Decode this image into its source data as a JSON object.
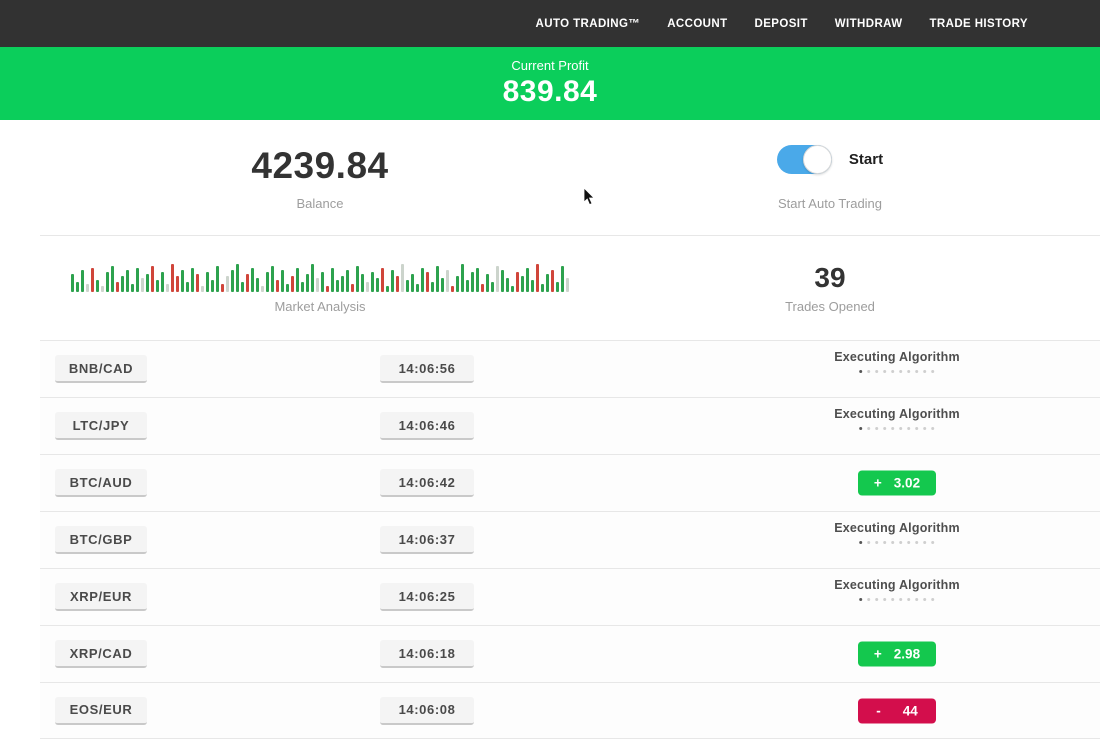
{
  "navbar": {
    "items": [
      {
        "label": "AUTO TRADING™"
      },
      {
        "label": "ACCOUNT"
      },
      {
        "label": "DEPOSIT"
      },
      {
        "label": "WITHDRAW"
      },
      {
        "label": "TRADE HISTORY"
      }
    ]
  },
  "profit_banner": {
    "label": "Current Profit",
    "value": "839.84"
  },
  "account": {
    "balance": "4239.84",
    "balance_label": "Balance",
    "toggle_label": "Start",
    "toggle_caption": "Start Auto Trading",
    "toggle_on": true
  },
  "market_analysis": {
    "label": "Market Analysis",
    "chart_type": "candlestick-strip",
    "bar_heights": [
      18,
      10,
      22,
      8,
      24,
      12,
      6,
      20,
      26,
      10,
      16,
      22,
      8,
      24,
      14,
      18,
      26,
      12,
      20,
      8,
      28,
      16,
      22,
      10,
      24,
      18,
      6,
      20,
      12,
      26,
      8,
      16,
      22,
      28,
      10,
      18,
      24,
      14,
      6,
      20,
      26,
      12,
      22,
      8,
      16,
      24,
      10,
      18,
      28,
      14,
      20,
      6,
      24,
      12,
      16,
      22,
      8,
      26,
      18,
      10,
      20,
      14,
      24,
      6,
      22,
      16,
      28,
      12,
      18,
      8,
      24,
      20,
      10,
      26,
      14,
      22,
      6,
      16,
      28,
      12,
      20,
      24,
      8,
      18,
      10,
      26,
      22,
      14,
      6,
      20,
      16,
      24,
      12,
      28,
      8,
      18,
      22,
      10,
      26,
      14
    ],
    "bar_colors": "ggglrglggrgggglgrgglrrgggrlgggrlgggrgglggrggrgggglgrggggrgglggrggrlggggrggglrgggggrgglgggrgggrggrgglg"
  },
  "trades_opened": {
    "value": "39",
    "label": "Trades Opened"
  },
  "trades": {
    "executing_label": "Executing Algorithm",
    "dots_total": 10,
    "dots_active": 1,
    "rows": [
      {
        "pair": "BNB/CAD",
        "time": "14:06:56",
        "status": "executing",
        "sign": "",
        "amount": ""
      },
      {
        "pair": "LTC/JPY",
        "time": "14:06:46",
        "status": "executing",
        "sign": "",
        "amount": ""
      },
      {
        "pair": "BTC/AUD",
        "time": "14:06:42",
        "status": "profit",
        "sign": "+",
        "amount": "3.02"
      },
      {
        "pair": "BTC/GBP",
        "time": "14:06:37",
        "status": "executing",
        "sign": "",
        "amount": ""
      },
      {
        "pair": "XRP/EUR",
        "time": "14:06:25",
        "status": "executing",
        "sign": "",
        "amount": ""
      },
      {
        "pair": "XRP/CAD",
        "time": "14:06:18",
        "status": "profit",
        "sign": "+",
        "amount": "2.98"
      },
      {
        "pair": "EOS/EUR",
        "time": "14:06:08",
        "status": "loss",
        "sign": "-",
        "amount": "44"
      }
    ]
  },
  "colors": {
    "banner_green": "#0bce5b",
    "badge_green": "#14c84e",
    "badge_red": "#d30e4c",
    "toggle_blue": "#4aa9e9",
    "navbar_bg": "#323232"
  }
}
